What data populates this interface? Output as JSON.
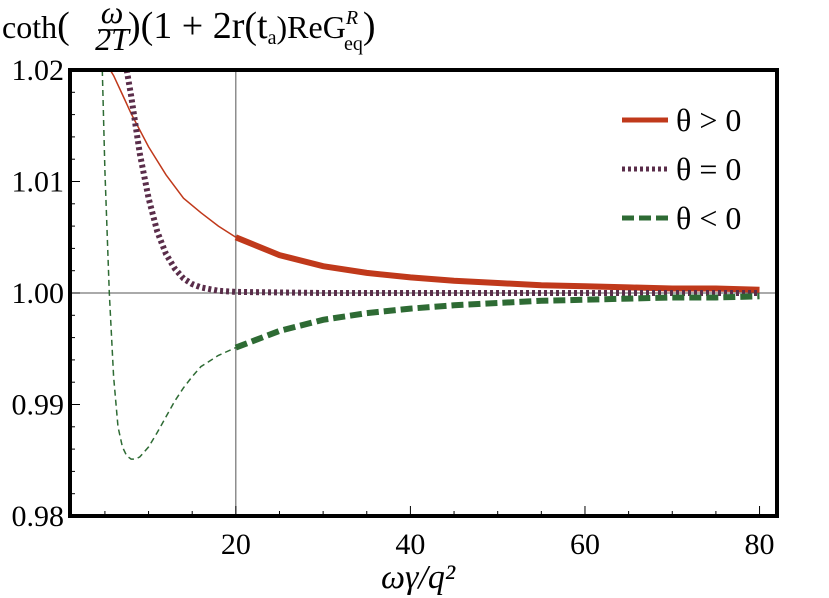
{
  "chart_data": {
    "type": "line",
    "title": "",
    "ylabel_parts": {
      "coth": "coth",
      "open_paren": "(",
      "frac_num": "ω",
      "frac_den": "2T",
      "close_paren": ")",
      "middle": "(1 + 2r(t",
      "sub_a": "a",
      "after_sub": ")ReG",
      "sup_R": "R",
      "sub_eq": "eq",
      "end": ")"
    },
    "xlabel": "ωγ/q²",
    "xlim": [
      1,
      82
    ],
    "ylim": [
      0.98,
      1.02
    ],
    "x_ticks": [
      20,
      40,
      60,
      80
    ],
    "x_tick_labels": [
      "20",
      "40",
      "60",
      "80"
    ],
    "y_ticks": [
      0.98,
      0.99,
      1.0,
      1.01,
      1.02
    ],
    "y_tick_labels": [
      "0.98",
      "0.99",
      "1.00",
      "1.01",
      "1.02"
    ],
    "reference_lines": {
      "vertical_x": 20,
      "horizontal_y": 1.0
    },
    "grid": false,
    "legend_position": "top-right",
    "series": [
      {
        "name": "θ > 0",
        "color": "#c0391b",
        "style": "solid",
        "thin_x": [
          5.6,
          6,
          7,
          8,
          10,
          12,
          14,
          16,
          18,
          20
        ],
        "thin_y": [
          1.02,
          1.0195,
          1.0178,
          1.0161,
          1.0131,
          1.0106,
          1.0085,
          1.0072,
          1.006,
          1.005
        ],
        "thick_x": [
          20,
          25,
          30,
          35,
          40,
          45,
          50,
          55,
          60,
          65,
          70,
          75,
          80
        ],
        "thick_y": [
          1.005,
          1.0034,
          1.0024,
          1.0018,
          1.0014,
          1.0011,
          1.0009,
          1.0007,
          1.0006,
          1.0005,
          1.0004,
          1.0004,
          1.0003
        ]
      },
      {
        "name": "θ = 0",
        "color": "#5a2d4a",
        "style": "dotted",
        "thin_x": [],
        "thin_y": [],
        "thick_x": [
          7.5,
          8,
          9,
          10,
          11,
          12,
          13,
          14,
          15,
          16,
          18,
          20,
          30,
          40,
          50,
          60,
          70,
          80
        ],
        "thick_y": [
          1.02,
          1.0177,
          1.0125,
          1.0085,
          1.0055,
          1.0035,
          1.0022,
          1.0013,
          1.0008,
          1.0005,
          1.0002,
          1.0001,
          1.0,
          1.0,
          1.0,
          1.0,
          1.0,
          1.0
        ]
      },
      {
        "name": "θ < 0",
        "color": "#2e6b34",
        "style": "dashed",
        "thin_x": [
          4.7,
          5,
          5.5,
          6,
          6.5,
          7,
          7.5,
          8,
          8.5,
          9,
          10,
          11,
          12,
          13,
          14,
          15,
          16,
          18,
          20
        ],
        "thin_y": [
          1.02,
          1.011,
          1.0,
          0.9925,
          0.988,
          0.9862,
          0.9854,
          0.9851,
          0.9851,
          0.9853,
          0.9862,
          0.9875,
          0.9889,
          0.9903,
          0.9915,
          0.9925,
          0.9934,
          0.9944,
          0.9951
        ],
        "thick_x": [
          20,
          25,
          30,
          35,
          40,
          45,
          50,
          55,
          60,
          65,
          70,
          75,
          80
        ],
        "thick_y": [
          0.9951,
          0.9966,
          0.9976,
          0.9982,
          0.9986,
          0.9989,
          0.9991,
          0.9993,
          0.9994,
          0.9995,
          0.9996,
          0.9996,
          0.9997
        ]
      }
    ]
  }
}
